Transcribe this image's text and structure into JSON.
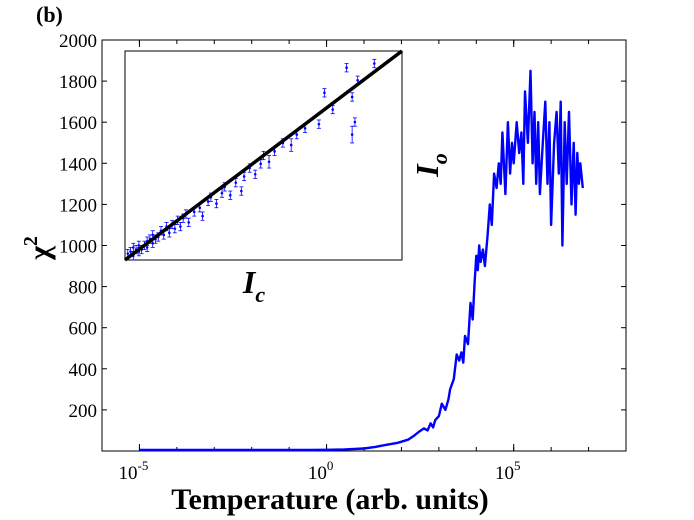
{
  "panel_label": "(b)",
  "chart_data": [
    {
      "type": "line",
      "xlabel": "Temperature (arb. units)",
      "ylabel": "χ",
      "ylabel_superscript": "2",
      "xscale": "log",
      "xlim": [
        1e-06,
        100000000
      ],
      "ylim": [
        0,
        2000
      ],
      "x_ticks": [
        {
          "value": 1e-05,
          "base": "10",
          "exp": "-5"
        },
        {
          "value": 1,
          "base": "10",
          "exp": "0"
        },
        {
          "value": 100000,
          "base": "10",
          "exp": "5"
        }
      ],
      "y_ticks": [
        200,
        400,
        600,
        800,
        1000,
        1200,
        1400,
        1600,
        1800,
        2000
      ],
      "grid": false,
      "series_color": "#0000ff",
      "series": [
        {
          "x": [
            1e-05,
            0.01,
            0.3,
            1,
            3,
            10,
            20,
            40,
            80,
            150,
            220,
            300,
            400,
            500,
            600,
            700,
            800,
            1000,
            1200,
            1500,
            1800,
            2000,
            2500,
            3000,
            3500,
            4000,
            4500,
            5000,
            6000,
            7000,
            8000,
            9000,
            10000,
            11000,
            12000,
            13000,
            15000,
            17000,
            20000,
            23000,
            26000,
            30000,
            35000,
            40000,
            45000,
            50000,
            60000,
            70000,
            80000,
            90000,
            100000,
            120000,
            140000,
            160000,
            180000,
            200000,
            240000,
            280000,
            320000,
            360000,
            400000,
            450000,
            500000,
            600000,
            700000,
            800000,
            900000,
            1000000,
            1200000,
            1400000,
            1600000,
            1800000,
            2000000,
            2300000,
            2600000,
            3000000,
            3500000,
            4000000,
            4500000,
            5000000,
            5500000,
            6000000,
            7000000
          ],
          "y": [
            5,
            5,
            5,
            6,
            8,
            12,
            20,
            30,
            40,
            55,
            75,
            95,
            110,
            100,
            135,
            115,
            150,
            170,
            230,
            200,
            250,
            300,
            350,
            470,
            440,
            480,
            430,
            560,
            520,
            720,
            640,
            820,
            950,
            880,
            1000,
            920,
            980,
            900,
            1050,
            1200,
            1100,
            1350,
            1280,
            1400,
            1300,
            1550,
            1250,
            1600,
            1350,
            1500,
            1400,
            1600,
            1450,
            1550,
            1300,
            1750,
            1500,
            1850,
            1400,
            1650,
            1300,
            1600,
            1250,
            1500,
            1700,
            1300,
            1600,
            1100,
            1500,
            1650,
            1350,
            1700,
            1000,
            1600,
            1300,
            1650,
            1200,
            1500,
            1150,
            1450,
            1300,
            1400,
            1280
          ]
        }
      ]
    },
    {
      "type": "scatter",
      "xlabel": "I",
      "xlabel_subscript": "c",
      "ylabel": "I",
      "ylabel_subscript": "o",
      "xlim": [
        0,
        1
      ],
      "ylim": [
        0,
        1
      ],
      "error_bars": true,
      "fit_line": {
        "x": [
          0,
          1
        ],
        "y": [
          0,
          1
        ],
        "color": "#000000"
      },
      "point_color": "#0000ff",
      "points": [
        {
          "x": 0.01,
          "y": 0.03,
          "err": 0.02
        },
        {
          "x": 0.02,
          "y": 0.04,
          "err": 0.02
        },
        {
          "x": 0.03,
          "y": 0.02,
          "err": 0.02
        },
        {
          "x": 0.03,
          "y": 0.06,
          "err": 0.02
        },
        {
          "x": 0.04,
          "y": 0.05,
          "err": 0.02
        },
        {
          "x": 0.05,
          "y": 0.04,
          "err": 0.02
        },
        {
          "x": 0.05,
          "y": 0.07,
          "err": 0.02
        },
        {
          "x": 0.06,
          "y": 0.05,
          "err": 0.02
        },
        {
          "x": 0.07,
          "y": 0.07,
          "err": 0.02
        },
        {
          "x": 0.08,
          "y": 0.09,
          "err": 0.02
        },
        {
          "x": 0.08,
          "y": 0.06,
          "err": 0.02
        },
        {
          "x": 0.09,
          "y": 0.1,
          "err": 0.02
        },
        {
          "x": 0.1,
          "y": 0.08,
          "err": 0.02
        },
        {
          "x": 0.1,
          "y": 0.12,
          "err": 0.02
        },
        {
          "x": 0.11,
          "y": 0.1,
          "err": 0.02
        },
        {
          "x": 0.12,
          "y": 0.11,
          "err": 0.02
        },
        {
          "x": 0.13,
          "y": 0.14,
          "err": 0.02
        },
        {
          "x": 0.14,
          "y": 0.12,
          "err": 0.02
        },
        {
          "x": 0.15,
          "y": 0.16,
          "err": 0.02
        },
        {
          "x": 0.16,
          "y": 0.13,
          "err": 0.02
        },
        {
          "x": 0.17,
          "y": 0.17,
          "err": 0.02
        },
        {
          "x": 0.18,
          "y": 0.15,
          "err": 0.02
        },
        {
          "x": 0.19,
          "y": 0.19,
          "err": 0.02
        },
        {
          "x": 0.2,
          "y": 0.16,
          "err": 0.02
        },
        {
          "x": 0.21,
          "y": 0.2,
          "err": 0.02
        },
        {
          "x": 0.22,
          "y": 0.22,
          "err": 0.02
        },
        {
          "x": 0.23,
          "y": 0.18,
          "err": 0.02
        },
        {
          "x": 0.25,
          "y": 0.23,
          "err": 0.02
        },
        {
          "x": 0.27,
          "y": 0.25,
          "err": 0.02
        },
        {
          "x": 0.28,
          "y": 0.21,
          "err": 0.02
        },
        {
          "x": 0.3,
          "y": 0.28,
          "err": 0.02
        },
        {
          "x": 0.31,
          "y": 0.3,
          "err": 0.02
        },
        {
          "x": 0.33,
          "y": 0.27,
          "err": 0.02
        },
        {
          "x": 0.35,
          "y": 0.32,
          "err": 0.02
        },
        {
          "x": 0.36,
          "y": 0.35,
          "err": 0.02
        },
        {
          "x": 0.38,
          "y": 0.31,
          "err": 0.02
        },
        {
          "x": 0.4,
          "y": 0.37,
          "err": 0.02
        },
        {
          "x": 0.42,
          "y": 0.33,
          "err": 0.02
        },
        {
          "x": 0.43,
          "y": 0.4,
          "err": 0.02
        },
        {
          "x": 0.45,
          "y": 0.44,
          "err": 0.02
        },
        {
          "x": 0.47,
          "y": 0.41,
          "err": 0.02
        },
        {
          "x": 0.49,
          "y": 0.46,
          "err": 0.02
        },
        {
          "x": 0.5,
          "y": 0.5,
          "err": 0.02
        },
        {
          "x": 0.52,
          "y": 0.47,
          "err": 0.03
        },
        {
          "x": 0.54,
          "y": 0.52,
          "err": 0.02
        },
        {
          "x": 0.57,
          "y": 0.56,
          "err": 0.02
        },
        {
          "x": 0.6,
          "y": 0.55,
          "err": 0.03
        },
        {
          "x": 0.62,
          "y": 0.6,
          "err": 0.02
        },
        {
          "x": 0.65,
          "y": 0.63,
          "err": 0.02
        },
        {
          "x": 0.7,
          "y": 0.65,
          "err": 0.02
        },
        {
          "x": 0.72,
          "y": 0.8,
          "err": 0.02
        },
        {
          "x": 0.75,
          "y": 0.72,
          "err": 0.02
        },
        {
          "x": 0.8,
          "y": 0.92,
          "err": 0.02
        },
        {
          "x": 0.82,
          "y": 0.78,
          "err": 0.02
        },
        {
          "x": 0.82,
          "y": 0.6,
          "err": 0.04
        },
        {
          "x": 0.83,
          "y": 0.66,
          "err": 0.02
        },
        {
          "x": 0.84,
          "y": 0.86,
          "err": 0.02
        },
        {
          "x": 0.9,
          "y": 0.94,
          "err": 0.02
        }
      ]
    }
  ]
}
